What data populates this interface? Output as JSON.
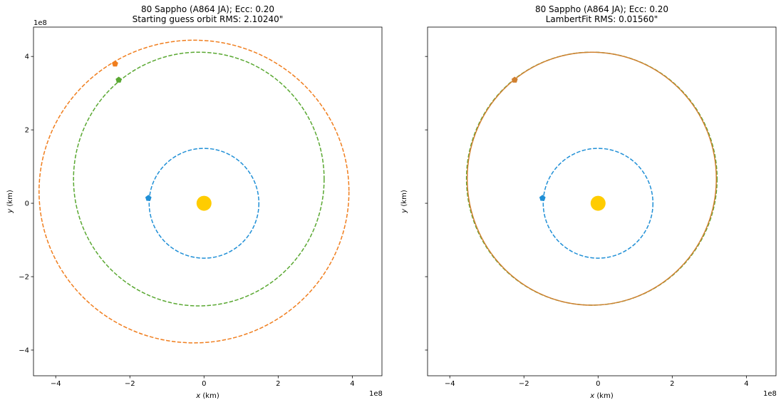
{
  "chart_data": [
    {
      "type": "scatter",
      "title": "80 Sappho (A864 JA); Ecc: 0.20",
      "subtitle": "Starting guess orbit RMS: 2.10240\"",
      "xlabel_var": "x",
      "xlabel_unit": " (km)",
      "ylabel_var": "y",
      "ylabel_unit": " (km)",
      "xlim": [
        -4.6,
        4.8
      ],
      "ylim": [
        -4.7,
        4.8
      ],
      "x_multiplier": "1e8",
      "xticks": [
        -4,
        -2,
        0,
        2,
        4
      ],
      "yticks": [
        -4,
        -2,
        0,
        2,
        4
      ],
      "xtick_labels": [
        "−4",
        "−2",
        "0",
        "2",
        "4"
      ],
      "ytick_labels": [
        "−4",
        "−2",
        "0",
        "2",
        "4"
      ],
      "show_ytick_labels": true,
      "grid": false,
      "sun": {
        "x": 0,
        "y": 0,
        "color": "#FFCC00"
      },
      "orbits": [
        {
          "name": "",
          "color": "#1f8fd6",
          "cx": 0,
          "cy": 0,
          "rx": 1.48,
          "ry": 1.48,
          "dashed": true,
          "marker": {
            "x": -1.5,
            "y": 0.14
          }
        },
        {
          "name": "",
          "color": "#5aa832",
          "cx": -0.14,
          "cy": 0.66,
          "rx": 3.38,
          "ry": 3.42,
          "dashed": true,
          "marker": {
            "x": -2.3,
            "y": 3.36
          }
        },
        {
          "name": "",
          "color": "#f07e1e",
          "cx": -0.27,
          "cy": 0.32,
          "rx": 4.18,
          "ry": 4.08,
          "dashed": true,
          "marker": {
            "x": -2.4,
            "y": 3.8
          }
        }
      ]
    },
    {
      "type": "scatter",
      "title": "80 Sappho (A864 JA); Ecc: 0.20",
      "subtitle": "LambertFit RMS: 0.01560\"",
      "xlabel_var": "x",
      "xlabel_unit": " (km)",
      "ylabel_var": "y",
      "ylabel_unit": " (km)",
      "xlim": [
        -4.6,
        4.8
      ],
      "ylim": [
        -4.7,
        4.8
      ],
      "x_multiplier": "1e8",
      "xticks": [
        -4,
        -2,
        0,
        2,
        4
      ],
      "yticks": [
        -4,
        -2,
        0,
        2,
        4
      ],
      "xtick_labels": [
        "−4",
        "−2",
        "0",
        "2",
        "4"
      ],
      "ytick_labels": [],
      "show_ytick_labels": false,
      "grid": false,
      "sun": {
        "x": 0,
        "y": 0,
        "color": "#FFCC00"
      },
      "orbits": [
        {
          "name": "",
          "color": "#1f8fd6",
          "cx": 0,
          "cy": 0,
          "rx": 1.48,
          "ry": 1.48,
          "dashed": true,
          "marker": {
            "x": -1.5,
            "y": 0.14
          }
        },
        {
          "name": "",
          "color": "#5aa832",
          "cx": -0.17,
          "cy": 0.67,
          "rx": 3.38,
          "ry": 3.41,
          "dashed": true,
          "marker": null
        },
        {
          "name": "",
          "color": "#d08030",
          "cx": -0.17,
          "cy": 0.67,
          "rx": 3.36,
          "ry": 3.41,
          "dashed": false,
          "marker": {
            "x": -2.25,
            "y": 3.36
          }
        }
      ]
    }
  ]
}
